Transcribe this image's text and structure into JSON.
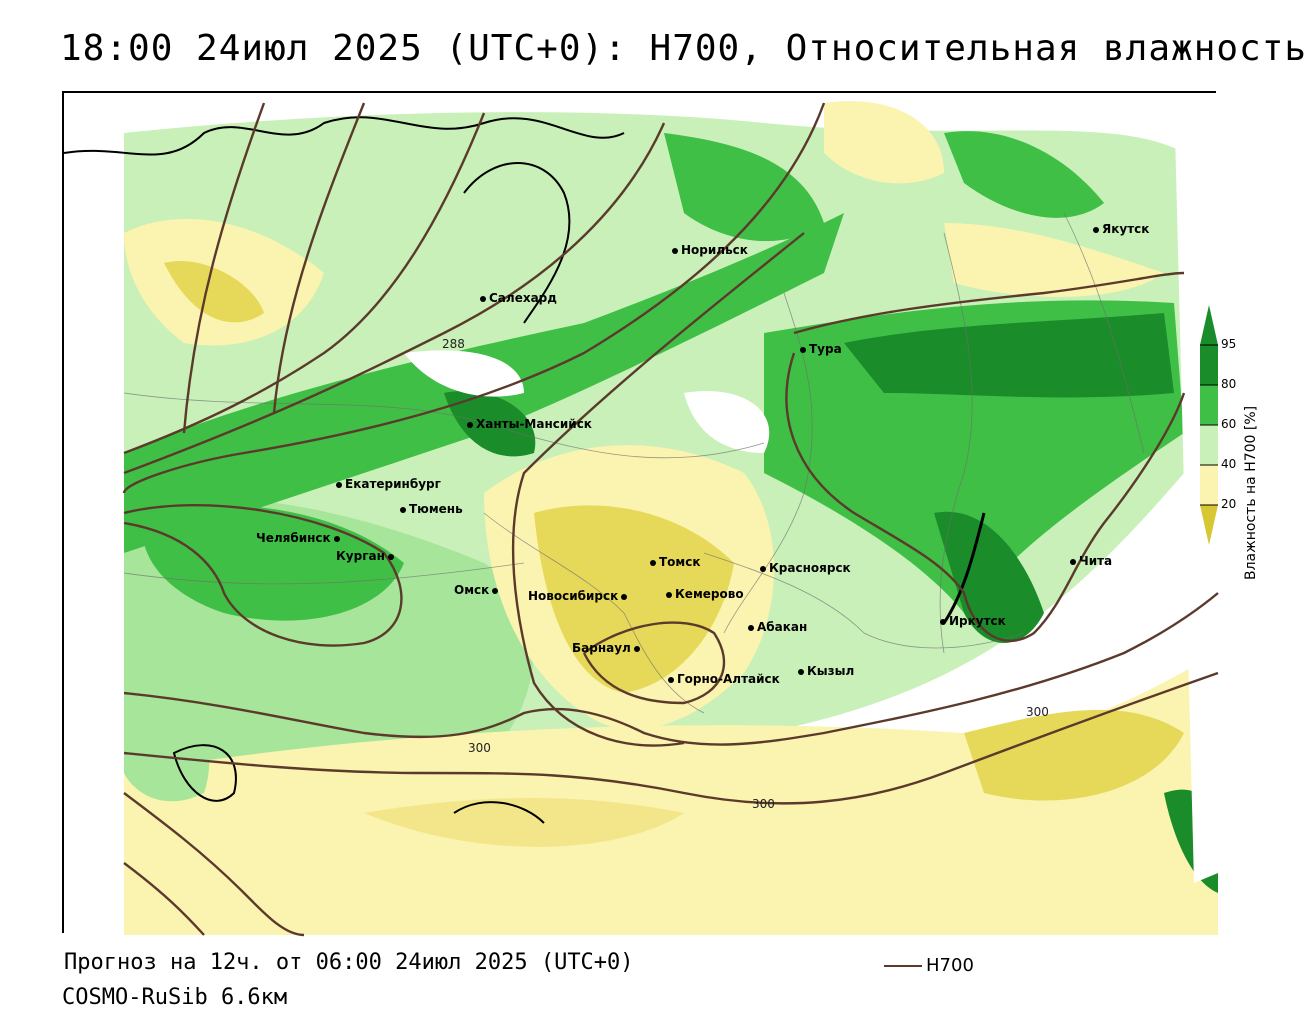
{
  "header": {
    "title": "18:00 24июл 2025 (UTC+0): H700, Относительная влажность"
  },
  "footer": {
    "forecast": "Прогноз на 12ч. от 06:00 24июл 2025 (UTC+0)",
    "model": "COSMO-RuSib 6.6км",
    "legend_label": "H700"
  },
  "colorbar": {
    "title": "Влажность на H700 [%]",
    "ticks": [
      "95",
      "80",
      "60",
      "40",
      "20"
    ],
    "colors": [
      "#1a8c2a",
      "#2fb63a",
      "#7fd86f",
      "#c8f0b8",
      "#ffffff",
      "#fbf3b0",
      "#efe27a",
      "#d7c733"
    ]
  },
  "cities": [
    {
      "name": "Якутск"
    },
    {
      "name": "Норильск"
    },
    {
      "name": "Салехард"
    },
    {
      "name": "Тура"
    },
    {
      "name": "Ханты-Мансийск"
    },
    {
      "name": "Екатеринбург"
    },
    {
      "name": "Тюмень"
    },
    {
      "name": "Челябинск"
    },
    {
      "name": "Курган"
    },
    {
      "name": "Томск"
    },
    {
      "name": "Красноярск"
    },
    {
      "name": "Омск"
    },
    {
      "name": "Новосибирск"
    },
    {
      "name": "Кемерово"
    },
    {
      "name": "Абакан"
    },
    {
      "name": "Барнаул"
    },
    {
      "name": "Иркутск"
    },
    {
      "name": "Чита"
    },
    {
      "name": "Кызыл"
    },
    {
      "name": "Горно-Алтайск"
    }
  ],
  "contour_labels": [
    "288",
    "300",
    "300",
    "300"
  ],
  "colors": {
    "contour": "#5b3a2c",
    "green_dark": "#1a8c2a",
    "green": "#3fbf45",
    "green_light": "#a6e59a",
    "yellow_light": "#fbf3b0",
    "yellow": "#e6d95a"
  }
}
